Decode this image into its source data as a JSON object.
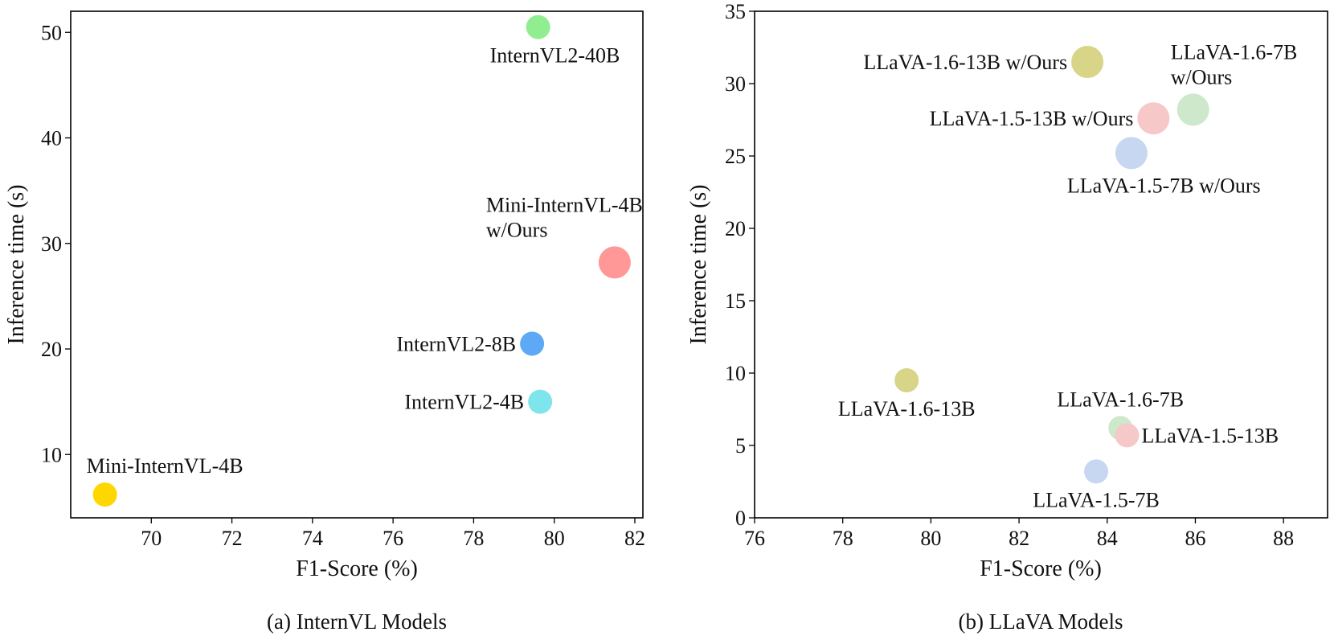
{
  "chart_data": [
    {
      "type": "scatter",
      "caption": "(a) InternVL Models",
      "xlabel": "F1-Score (%)",
      "ylabel": "Inference time (s)",
      "xlim": [
        68.0,
        82.2
      ],
      "ylim": [
        4.0,
        52.0
      ],
      "xticks": [
        70,
        72,
        74,
        76,
        78,
        80,
        82
      ],
      "yticks": [
        10,
        20,
        30,
        40,
        50
      ],
      "points": [
        {
          "name": "InternVL2-40B",
          "label_lines": [
            "InternVL2-40B"
          ],
          "x": 79.6,
          "y": 50.5,
          "size": "medium",
          "color": "#90EE90",
          "label_pos": "below-right"
        },
        {
          "name": "Mini-InternVL-4B w/Ours",
          "label_lines": [
            "Mini-InternVL-4B",
            "w/Ours"
          ],
          "x": 81.5,
          "y": 28.2,
          "size": "large",
          "color": "#FF9896",
          "label_pos": "above-left"
        },
        {
          "name": "InternVL2-8B",
          "label_lines": [
            "InternVL2-8B"
          ],
          "x": 79.45,
          "y": 20.5,
          "size": "medium",
          "color": "#5DA9F6",
          "label_pos": "left"
        },
        {
          "name": "InternVL2-4B",
          "label_lines": [
            "InternVL2-4B"
          ],
          "x": 79.65,
          "y": 15.0,
          "size": "medium",
          "color": "#7FE5EC",
          "label_pos": "left"
        },
        {
          "name": "Mini-InternVL-4B",
          "label_lines": [
            "Mini-InternVL-4B"
          ],
          "x": 68.85,
          "y": 6.2,
          "size": "medium",
          "color": "#FFD700",
          "label_pos": "above-right"
        }
      ]
    },
    {
      "type": "scatter",
      "caption": "(b) LLaVA Models",
      "xlabel": "F1-Score (%)",
      "ylabel": "Inference time (s)",
      "xlim": [
        76,
        89
      ],
      "ylim": [
        0,
        35
      ],
      "xticks": [
        76,
        78,
        80,
        82,
        84,
        86,
        88
      ],
      "yticks": [
        0,
        5,
        10,
        15,
        20,
        25,
        30,
        35
      ],
      "points": [
        {
          "name": "LLaVA-1.6-13B w/Ours",
          "label_lines": [
            "LLaVA-1.6-13B w/Ours"
          ],
          "x": 83.55,
          "y": 31.5,
          "size": "large",
          "color": "#D8D488",
          "label_pos": "left"
        },
        {
          "name": "LLaVA-1.6-7B w/Ours",
          "label_lines": [
            "LLaVA-1.6-7B",
            "w/Ours"
          ],
          "x": 85.95,
          "y": 28.2,
          "size": "large",
          "color": "#CDE8CA",
          "label_pos": "above-right"
        },
        {
          "name": "LLaVA-1.5-13B w/Ours",
          "label_lines": [
            "LLaVA-1.5-13B w/Ours"
          ],
          "x": 85.05,
          "y": 27.6,
          "size": "large",
          "color": "#F6C8C8",
          "label_pos": "left"
        },
        {
          "name": "LLaVA-1.5-7B w/Ours",
          "label_lines": [
            "LLaVA-1.5-7B w/Ours"
          ],
          "x": 84.55,
          "y": 25.2,
          "size": "large",
          "color": "#C7D7F2",
          "label_pos": "below-right"
        },
        {
          "name": "LLaVA-1.6-13B",
          "label_lines": [
            "LLaVA-1.6-13B"
          ],
          "x": 79.45,
          "y": 9.5,
          "size": "medium",
          "color": "#D8D488",
          "label_pos": "below"
        },
        {
          "name": "LLaVA-1.6-7B",
          "label_lines": [
            "LLaVA-1.6-7B"
          ],
          "x": 84.3,
          "y": 6.2,
          "size": "medium",
          "color": "#CDE8CA",
          "label_pos": "above"
        },
        {
          "name": "LLaVA-1.5-13B",
          "label_lines": [
            "LLaVA-1.5-13B"
          ],
          "x": 84.45,
          "y": 5.7,
          "size": "medium",
          "color": "#F6C8C8",
          "label_pos": "right"
        },
        {
          "name": "LLaVA-1.5-7B",
          "label_lines": [
            "LLaVA-1.5-7B"
          ],
          "x": 83.75,
          "y": 3.2,
          "size": "medium",
          "color": "#C7D7F2",
          "label_pos": "below"
        }
      ]
    }
  ]
}
